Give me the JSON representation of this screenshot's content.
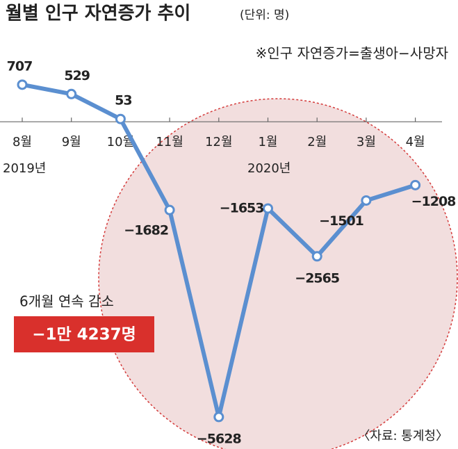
{
  "chart_data": {
    "type": "line",
    "title": "월별 인구 자연증가 추이",
    "unit": "(단위: 명)",
    "note": "※인구 자연증가=출생아−사망자",
    "categories": [
      "8월",
      "9월",
      "10월",
      "11월",
      "12월",
      "1월",
      "2월",
      "3월",
      "4월"
    ],
    "years": [
      "2019년",
      "2020년"
    ],
    "series": [
      {
        "name": "인구 자연증가",
        "color": "#5b8fd0",
        "values": [
          707,
          529,
          53,
          -1682,
          -5628,
          -1653,
          -2565,
          -1501,
          -1208
        ],
        "value_labels": [
          "707",
          "529",
          "53",
          "−1682",
          "−5628",
          "−1653",
          "−2565",
          "−1501",
          "−1208"
        ]
      }
    ],
    "ylim": [
      -6000,
      1500
    ],
    "annotation": {
      "text": "6개월 연속 감소",
      "total": "−1만 4237명"
    },
    "source": "〈자료: 통계청〉"
  }
}
